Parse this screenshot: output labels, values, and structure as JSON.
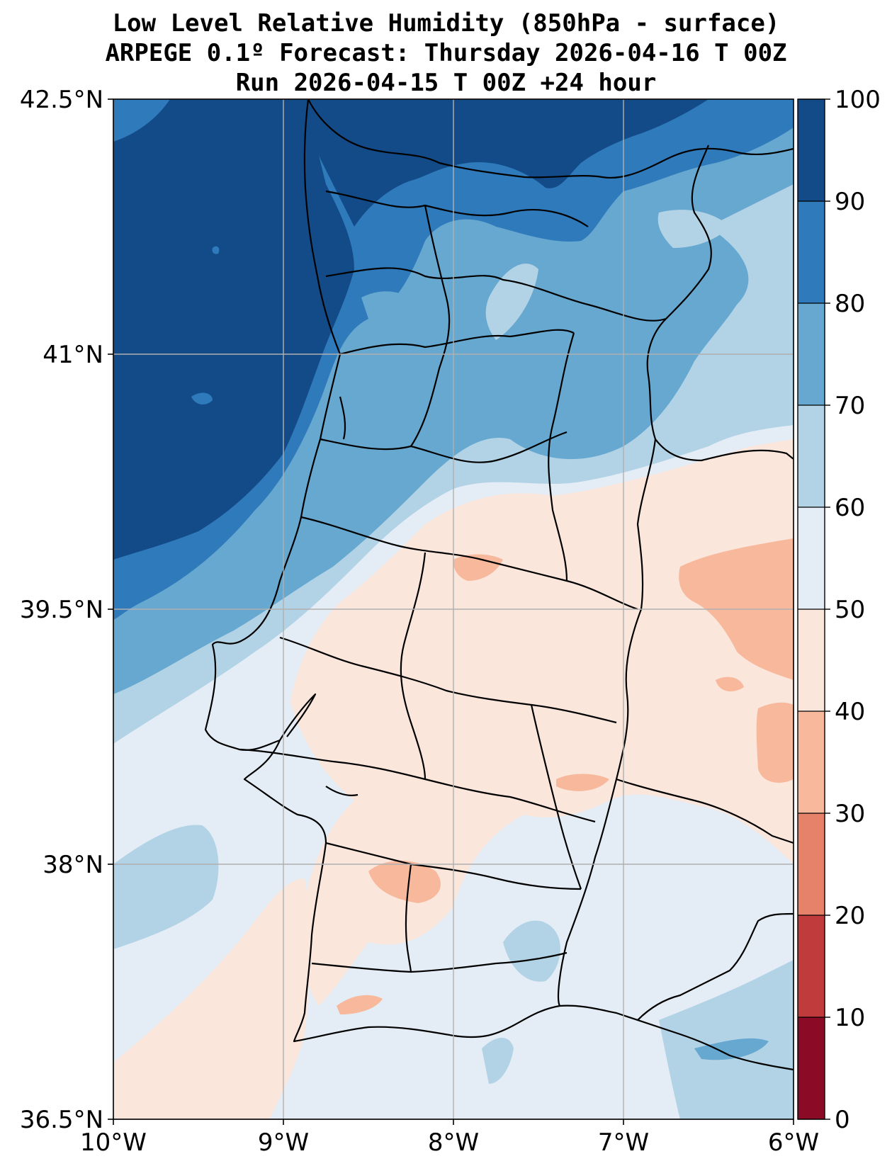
{
  "title": {
    "line1": "Low Level Relative Humidity (850hPa - surface)",
    "line2": "ARPEGE 0.1º Forecast: Thursday 2026-04-16 T 00Z",
    "line3": "Run 2026-04-15 T 00Z +24 hour"
  },
  "map": {
    "lon_range": [
      -10,
      -6
    ],
    "lat_range": [
      36.5,
      42.5
    ],
    "lon_ticks": [
      {
        "value": -10,
        "label": "10°W"
      },
      {
        "value": -9,
        "label": "9°W"
      },
      {
        "value": -8,
        "label": "8°W"
      },
      {
        "value": -7,
        "label": "7°W"
      },
      {
        "value": -6,
        "label": "6°W"
      }
    ],
    "lat_ticks": [
      {
        "value": 42.5,
        "label": "42.5°N"
      },
      {
        "value": 41,
        "label": "41°N"
      },
      {
        "value": 39.5,
        "label": "39.5°N"
      },
      {
        "value": 38,
        "label": "38°N"
      },
      {
        "value": 36.5,
        "label": "36.5°N"
      }
    ],
    "gridlines": true
  },
  "colorbar": {
    "levels": [
      0,
      10,
      20,
      30,
      40,
      50,
      60,
      70,
      80,
      90,
      100
    ],
    "labels": [
      "0",
      "10",
      "20",
      "30",
      "40",
      "50",
      "60",
      "70",
      "80",
      "90",
      "100"
    ],
    "colors": [
      "#8b0a25",
      "#c03b3b",
      "#e6826a",
      "#f7b89c",
      "#fbe6dc",
      "#e4edf5",
      "#b2d3e6",
      "#66a8d0",
      "#2f7abb",
      "#134b89"
    ]
  }
}
